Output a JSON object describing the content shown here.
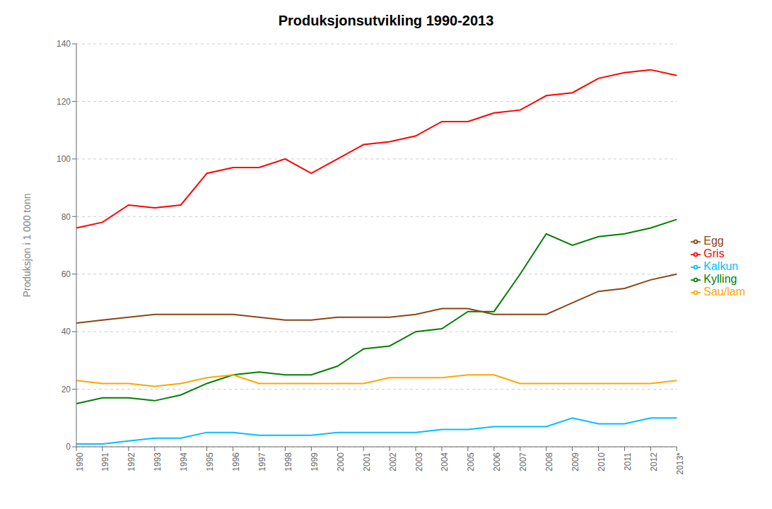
{
  "chart_data": {
    "type": "line",
    "title": "Produksjonsutvikling 1990-2013",
    "y_label": "Produksjon i 1 000 tonn",
    "categories": [
      "1990",
      "1991",
      "1992",
      "1993",
      "1994",
      "1995",
      "1996",
      "1997",
      "1998",
      "1999",
      "2000",
      "2001",
      "2002",
      "2003",
      "2004",
      "2005",
      "2006",
      "2007",
      "2008",
      "2009",
      "2010",
      "2011",
      "2012",
      "2013*"
    ],
    "series": [
      {
        "name": "Kylling",
        "color": "#008000",
        "values": [
          15,
          17,
          17,
          16,
          18,
          22,
          25,
          26,
          25,
          25,
          28,
          34,
          35,
          40,
          41,
          47,
          47,
          60,
          74,
          70,
          73,
          74,
          76,
          79
        ]
      },
      {
        "name": "Gris",
        "color": "#FF0000",
        "values": [
          76,
          78,
          84,
          83,
          84,
          95,
          97,
          97,
          100,
          95,
          100,
          105,
          106,
          108,
          113,
          113,
          116,
          117,
          122,
          123,
          128,
          130,
          131,
          129
        ]
      },
      {
        "name": "Sau/lam",
        "color": "#FFA500",
        "values": [
          23,
          22,
          22,
          21,
          22,
          24,
          25,
          22,
          22,
          22,
          22,
          22,
          24,
          24,
          24,
          25,
          25,
          22,
          22,
          22,
          22,
          22,
          22,
          23
        ]
      },
      {
        "name": "Egg",
        "color": "#8B4513",
        "values": [
          43,
          44,
          45,
          46,
          46,
          46,
          46,
          45,
          44,
          44,
          45,
          45,
          45,
          46,
          48,
          48,
          46,
          46,
          46,
          50,
          54,
          55,
          58,
          60
        ]
      },
      {
        "name": "Kalkun",
        "color": "#00BFFF",
        "values": [
          1,
          1,
          2,
          3,
          3,
          5,
          5,
          4,
          4,
          4,
          5,
          5,
          5,
          5,
          6,
          6,
          7,
          7,
          7,
          10,
          8,
          8,
          10,
          10
        ]
      }
    ],
    "ylim": [
      0,
      140
    ],
    "yticks": [
      0,
      20,
      40,
      60,
      80,
      100,
      120,
      140
    ],
    "grid": true,
    "legend": "right"
  }
}
